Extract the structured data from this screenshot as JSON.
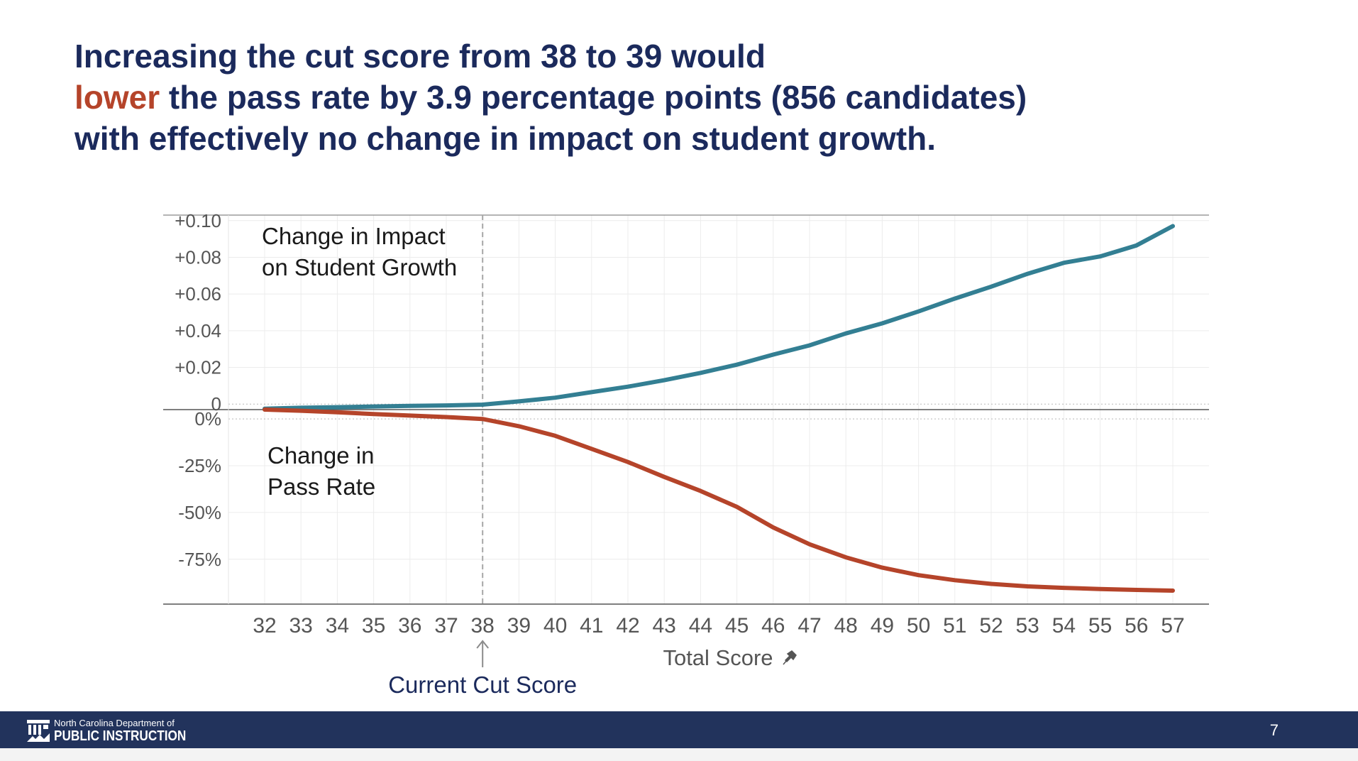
{
  "title": {
    "line1": {
      "p1": "Increasing the cut score from ",
      "b1": "38",
      "p2": " to ",
      "b2": "39",
      "p3": " would"
    },
    "line2": {
      "hl": "lower",
      "p1": " the pass rate by ",
      "b1": "3.9",
      "p2": " percentage points (",
      "b2": "856 candidates",
      "p3": ")"
    },
    "line3": {
      "p1": "with effectively ",
      "b1": "no change",
      "p2": " in impact on student growth."
    }
  },
  "chart_data": [
    {
      "type": "line",
      "panel": "top",
      "label_lines": [
        "Change in Impact",
        "on Student Growth"
      ],
      "color": "#337f93",
      "ylim": [
        -0.003,
        0.103
      ],
      "y_ticks": [
        0,
        0.02,
        0.04,
        0.06,
        0.08,
        0.1
      ],
      "y_tick_labels": [
        "0",
        "+0.02",
        "+0.04",
        "+0.06",
        "+0.08",
        "+0.10"
      ],
      "x": [
        32,
        33,
        34,
        35,
        36,
        37,
        38,
        39,
        40,
        41,
        42,
        43,
        44,
        45,
        46,
        47,
        48,
        49,
        50,
        51,
        52,
        53,
        54,
        55,
        56,
        57
      ],
      "values": [
        -0.0025,
        -0.002,
        -0.0017,
        -0.0013,
        -0.001,
        -0.0007,
        -0.0003,
        0.0015,
        0.0035,
        0.0065,
        0.0095,
        0.013,
        0.017,
        0.0215,
        0.027,
        0.032,
        0.0385,
        0.044,
        0.0505,
        0.0575,
        0.064,
        0.071,
        0.077,
        0.0805,
        0.0865,
        0.097
      ],
      "grid": true
    },
    {
      "type": "line",
      "panel": "bottom",
      "label_lines": [
        "Change in",
        "Pass Rate"
      ],
      "color": "#b5442a",
      "ylim": [
        -99,
        5
      ],
      "y_ticks": [
        0,
        -25,
        -50,
        -75
      ],
      "y_tick_labels": [
        "0%",
        "-25%",
        "-50%",
        "-75%"
      ],
      "x": [
        32,
        33,
        34,
        35,
        36,
        37,
        38,
        39,
        40,
        41,
        42,
        43,
        44,
        45,
        46,
        47,
        48,
        49,
        50,
        51,
        52,
        53,
        54,
        55,
        56,
        57
      ],
      "values": [
        5,
        4.4,
        3.6,
        2.6,
        1.8,
        1.0,
        0,
        -3.9,
        -9,
        -16,
        -23,
        -31,
        -38.5,
        -47,
        -58,
        -67,
        -74,
        -79.5,
        -83.5,
        -86.2,
        -88.2,
        -89.5,
        -90.3,
        -90.9,
        -91.4,
        -91.8
      ],
      "grid": true
    }
  ],
  "x_axis": {
    "label": "Total Score",
    "tick_labels": [
      "32",
      "33",
      "34",
      "35",
      "36",
      "37",
      "38",
      "39",
      "40",
      "41",
      "42",
      "43",
      "44",
      "45",
      "46",
      "47",
      "48",
      "49",
      "50",
      "51",
      "52",
      "53",
      "54",
      "55",
      "56",
      "57"
    ]
  },
  "cut_score": {
    "value": 38,
    "label": "Current Cut Score"
  },
  "footer": {
    "org_line1": "North Carolina Department of",
    "org_line2": "PUBLIC INSTRUCTION",
    "page_number": "7",
    "background": "#22335c"
  }
}
